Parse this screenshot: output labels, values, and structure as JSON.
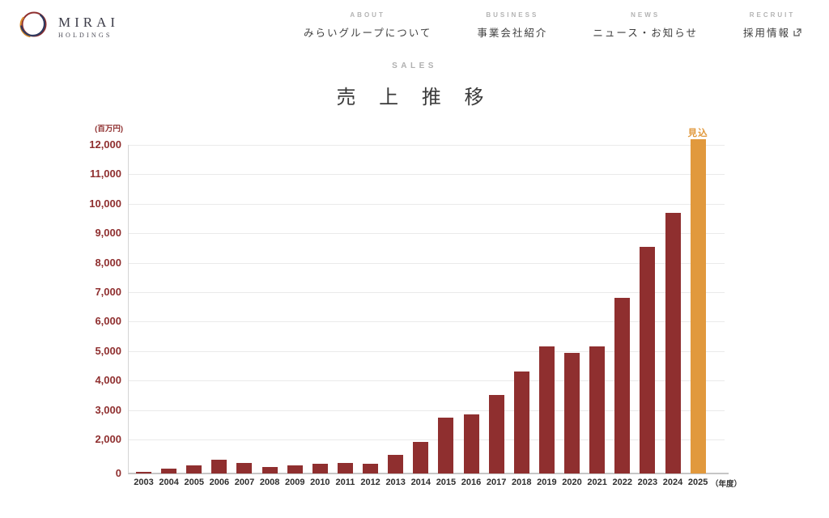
{
  "header": {
    "logo": {
      "brand": "MIRAI",
      "sub": "HOLDINGS"
    },
    "nav": [
      {
        "en": "ABOUT",
        "ja": "みらいグループについて"
      },
      {
        "en": "BUSINESS",
        "ja": "事業会社紹介"
      },
      {
        "en": "NEWS",
        "ja": "ニュース・お知らせ"
      },
      {
        "en": "RECRUIT",
        "ja": "採用情報"
      }
    ]
  },
  "section": {
    "eyebrow": "SALES",
    "title": "売 上 推 移"
  },
  "chart_data": {
    "type": "bar",
    "title": "売上推移",
    "unit_label": "(百万円)",
    "x_suffix_label": "（年度）",
    "forecast_label": "見込",
    "categories": [
      "2003",
      "2004",
      "2005",
      "2006",
      "2007",
      "2008",
      "2009",
      "2010",
      "2011",
      "2012",
      "2013",
      "2014",
      "2015",
      "2016",
      "2017",
      "2018",
      "2019",
      "2020",
      "2021",
      "2022",
      "2023",
      "2024",
      "2025"
    ],
    "values": [
      100,
      300,
      500,
      800,
      600,
      400,
      500,
      550,
      600,
      550,
      1100,
      1850,
      2750,
      2850,
      3500,
      4300,
      5150,
      4950,
      5150,
      6800,
      8550,
      9700,
      12200
    ],
    "forecast_index": 22,
    "y_tick_values": [
      12000,
      11000,
      10000,
      9000,
      8000,
      7000,
      6000,
      5000,
      4000,
      3000,
      2000,
      0
    ],
    "y_tick_labels": [
      "12,000",
      "11,000",
      "10,000",
      "9,000",
      "8,000",
      "7,000",
      "6,000",
      "5,000",
      "4,000",
      "3,000",
      "2,000",
      "0"
    ],
    "ylim": [
      0,
      12200
    ],
    "grid": true,
    "legend": "none",
    "colors": {
      "bar": "#8f2f2f",
      "forecast_bar": "#e1993d",
      "axis_label": "#8f2f2f",
      "grid": "#eaeaea",
      "tick_label": "#2e2e2e"
    }
  }
}
